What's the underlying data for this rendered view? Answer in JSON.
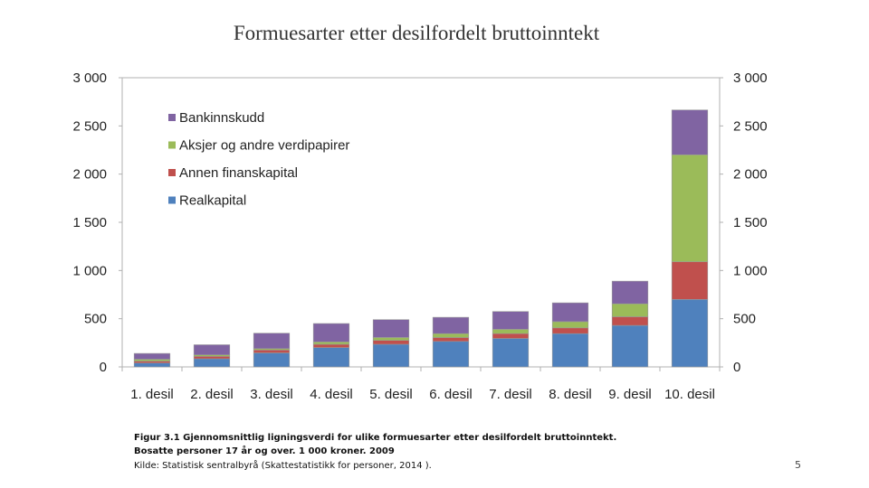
{
  "chart_data": {
    "type": "bar",
    "stacked": true,
    "title": "Formuesarter etter desilfordelt bruttoinntekt",
    "categories": [
      "1. desil",
      "2. desil",
      "3. desil",
      "4. desil",
      "5. desil",
      "6. desil",
      "7. desil",
      "8. desil",
      "9. desil",
      "10. desil"
    ],
    "series": [
      {
        "name": "Realkapital",
        "color": "#4f81bd",
        "values": [
          40,
          85,
          145,
          200,
          235,
          265,
          295,
          345,
          430,
          700
        ]
      },
      {
        "name": "Annen finanskapital",
        "color": "#c0504d",
        "values": [
          20,
          25,
          30,
          35,
          40,
          40,
          50,
          60,
          90,
          390
        ]
      },
      {
        "name": "Aksjer og andre verdipapirer",
        "color": "#9bbb59",
        "values": [
          20,
          15,
          15,
          25,
          30,
          40,
          45,
          65,
          135,
          1110
        ]
      },
      {
        "name": "Bankinnskudd",
        "color": "#8064a2",
        "values": [
          60,
          105,
          160,
          190,
          185,
          170,
          185,
          195,
          235,
          465
        ]
      }
    ],
    "ylim": [
      0,
      3000
    ],
    "yticks": [
      0,
      500,
      1000,
      1500,
      2000,
      2500,
      3000
    ],
    "ytick_labels": [
      "0",
      "500",
      "1 000",
      "1 500",
      "2 000",
      "2 500",
      "3 000"
    ],
    "secondary_y_axis": true,
    "legend_order": [
      "Bankinnskudd",
      "Aksjer og andre verdipapirer",
      "Annen finanskapital",
      "Realkapital"
    ],
    "legend_position": "top-left",
    "grid": false
  },
  "caption": {
    "line1": "Figur 3.1 Gjennomsnittlig ligningsverdi for ulike formuesarter etter desilfordelt bruttoinntekt.",
    "line2": "Bosatte personer 17 år og over. 1 000 kroner. 2009",
    "line3": "Kilde: Statistisk sentralbyrå (Skattestatistikk for personer, 2014 )."
  },
  "page_number": "5"
}
